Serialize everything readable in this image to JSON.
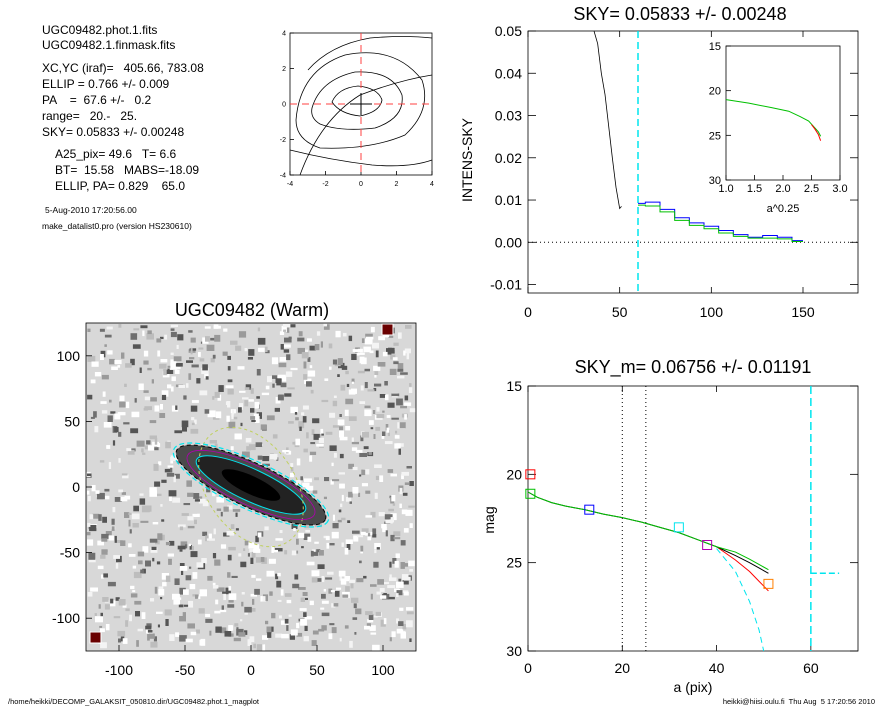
{
  "header": {
    "lines_a": [
      "UGC09482.phot.1.fits",
      "UGC09482.1.finmask.fits"
    ],
    "lines_b": [
      "XC,YC (iraf)=   405.66, 783.08",
      "ELLIP = 0.766 +/- 0.009",
      "PA    =  67.6 +/-   0.2",
      "range=   20.-   25.",
      "SKY= 0.05833 +/- 0.00248"
    ],
    "lines_c": [
      "A25_pix= 49.6   T= 6.6",
      "BT=  15.58   MABS=-18.09",
      "ELLIP, PA= 0.829    65.0"
    ],
    "date_line": "5-Aug-2010 17:20:56.00",
    "program_line": "make_datalist0.pro (version HS230610)"
  },
  "footer": {
    "left": "/home/heikki/DECOMP_GALAKSIT_050810.dir/UGC09482.phot.1_magplot",
    "right": "heikki@hiisi.oulu.fi  Thu Aug  5 17:20:56 2010"
  },
  "colors": {
    "black": "#000000",
    "cyan": "#00e5ee",
    "red": "#ff0000",
    "green": "#00c000",
    "blue": "#0000ff",
    "magenta": "#b000b0",
    "orange": "#ff8000",
    "gray_grid": "#999999"
  },
  "chart_data": [
    {
      "id": "contour",
      "type": "contour",
      "title": "",
      "xlim": [
        -4,
        4
      ],
      "ylim": [
        -4,
        4
      ],
      "xticks": [
        "-4",
        "-2",
        "0",
        "2",
        "4"
      ],
      "yticks": [
        "4",
        "2",
        "0",
        "-2",
        "-4"
      ],
      "crosshair": [
        0,
        0
      ]
    },
    {
      "id": "sky",
      "type": "line",
      "title": "SKY= 0.05833 +/- 0.00248",
      "xlabel": "",
      "ylabel": "INTENS-SKY",
      "xlim": [
        0,
        180
      ],
      "ylim": [
        -0.012,
        0.05
      ],
      "xticks": [
        "0",
        "50",
        "100",
        "150"
      ],
      "yticks": [
        "0.05",
        "0.04",
        "0.03",
        "0.02",
        "0.01",
        "0.00",
        "-0.01"
      ],
      "vline_x": 60,
      "inner_curve": {
        "x": [
          36,
          38,
          40,
          42,
          44,
          46,
          48,
          50,
          51
        ],
        "y": [
          0.05,
          0.047,
          0.04,
          0.035,
          0.0275,
          0.02,
          0.013,
          0.008,
          0.0085
        ]
      },
      "steps_blue": {
        "x": [
          60,
          64,
          72,
          80,
          88,
          96,
          104,
          112,
          120,
          128,
          136,
          144,
          150
        ],
        "y": [
          0.0092,
          0.0095,
          0.0078,
          0.0058,
          0.0046,
          0.0038,
          0.0028,
          0.0018,
          0.0012,
          0.0016,
          0.0012,
          0.0004,
          0.0004
        ]
      },
      "steps_green": {
        "x": [
          60,
          64,
          72,
          80,
          88,
          96,
          104,
          112,
          120,
          128,
          136,
          144,
          150
        ],
        "y": [
          0.0088,
          0.0086,
          0.0072,
          0.0052,
          0.004,
          0.0032,
          0.0022,
          0.0014,
          0.001,
          0.001,
          0.0008,
          0.0002,
          0.0002
        ]
      },
      "inset": {
        "xlabel": "a^0.25",
        "xlim": [
          1.0,
          3.0
        ],
        "ylim": [
          30,
          15
        ],
        "xticks": [
          "1.0",
          "1.5",
          "2.0",
          "2.5",
          "3.0"
        ],
        "yticks": [
          "15",
          "20",
          "25",
          "30"
        ],
        "curve_green": {
          "x": [
            1.0,
            1.4,
            1.8,
            2.1,
            2.3,
            2.45,
            2.55,
            2.62,
            2.66
          ],
          "y": [
            21.0,
            21.4,
            21.9,
            22.3,
            22.9,
            23.4,
            24.1,
            24.6,
            25.1
          ]
        },
        "curve_red": {
          "x": [
            2.5,
            2.56,
            2.62,
            2.66
          ],
          "y": [
            23.8,
            24.3,
            24.9,
            25.6
          ]
        }
      }
    },
    {
      "id": "image",
      "type": "image",
      "title": "UGC09482 (Warm)",
      "xlim": [
        -125,
        125
      ],
      "ylim": [
        -125,
        125
      ],
      "xticks": [
        "-100",
        "-50",
        "0",
        "50",
        "100"
      ],
      "yticks": [
        "100",
        "50",
        "0",
        "-50",
        "-100"
      ]
    },
    {
      "id": "mag",
      "type": "line",
      "title": "SKY_m=  0.06756 +/- 0.01191",
      "xlabel": "a (pix)",
      "ylabel": "mag",
      "xlim": [
        0,
        70
      ],
      "ylim": [
        30,
        15
      ],
      "xticks": [
        "0",
        "20",
        "40",
        "60"
      ],
      "yticks": [
        "15",
        "20",
        "25",
        "30"
      ],
      "vlines_dotted": [
        20,
        25
      ],
      "vline_dashed": 60,
      "profile": {
        "x": [
          0,
          2,
          5,
          8,
          12,
          16,
          20,
          24,
          28,
          32,
          36,
          40,
          44,
          47,
          49,
          51
        ],
        "y": [
          21.0,
          21.3,
          21.6,
          21.8,
          22.0,
          22.25,
          22.45,
          22.7,
          23.0,
          23.3,
          23.7,
          24.1,
          24.6,
          25.0,
          25.3,
          25.6
        ]
      },
      "extrap_cyan": {
        "x": [
          40,
          44,
          47,
          49,
          50
        ],
        "y": [
          24.2,
          25.5,
          27.2,
          28.8,
          30
        ]
      },
      "markers": [
        {
          "x": 0.5,
          "y": 20.0,
          "color": "red"
        },
        {
          "x": 0.5,
          "y": 21.1,
          "color": "green"
        },
        {
          "x": 13,
          "y": 22.0,
          "color": "blue"
        },
        {
          "x": 32,
          "y": 23.0,
          "color": "cyan"
        },
        {
          "x": 38,
          "y": 24.0,
          "color": "magenta"
        },
        {
          "x": 51,
          "y": 26.2,
          "color": "orange"
        }
      ],
      "sky_segment_cyan": {
        "x": [
          60,
          66
        ],
        "y": [
          25.6,
          25.6
        ]
      }
    }
  ]
}
